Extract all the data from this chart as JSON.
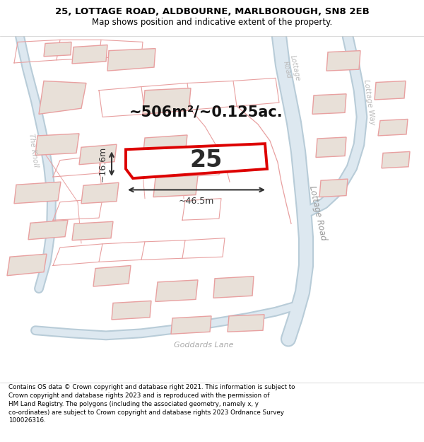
{
  "title": "25, LOTTAGE ROAD, ALDBOURNE, MARLBOROUGH, SN8 2EB",
  "subtitle": "Map shows position and indicative extent of the property.",
  "footer": "Contains OS data © Crown copyright and database right 2021. This information is subject to\nCrown copyright and database rights 2023 and is reproduced with the permission of\nHM Land Registry. The polygons (including the associated geometry, namely x, y\nco-ordinates) are subject to Crown copyright and database rights 2023 Ordnance Survey\n100026316.",
  "area_label": "~506m²/~0.125ac.",
  "plot_number": "25",
  "dim_width": "~46.5m",
  "dim_height": "~16.6m",
  "road_lottage": "Lottage Road",
  "road_lottage_top": "Lottage\nRoad",
  "road_way": "Lottage Way",
  "road_knoll": "The Knoll",
  "road_goddards": "Goddards Lane",
  "map_bg": "#ffffff",
  "road_outer": "#b8ccd8",
  "road_inner": "#dde8f0",
  "building_fill": "#e8e0d8",
  "map_line": "#e8a0a0",
  "plot_fill": "#ffffff",
  "plot_edge": "#dd0000",
  "dim_color": "#333333",
  "label_gray": "#aaaaaa",
  "title_color": "#000000"
}
